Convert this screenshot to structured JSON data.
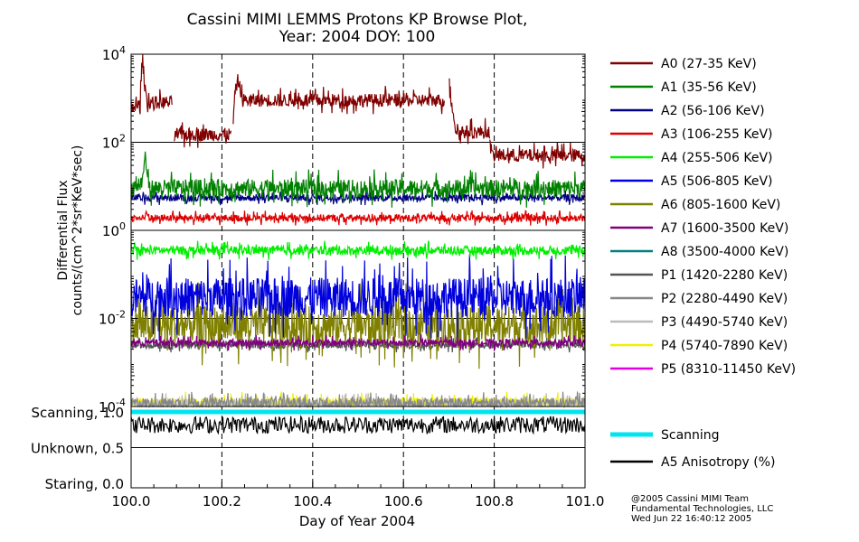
{
  "chart_data": [
    {
      "type": "line",
      "title": "Cassini MIMI LEMMS Protons KP Browse Plot,",
      "subtitle": "Year: 2004 DOY: 100",
      "ylabel_line1": "Differential Flux",
      "ylabel_line2": "counts/(cm^2*sr*KeV*sec)",
      "xlim": [
        100.0,
        101.0
      ],
      "ylim_log10": [
        -4,
        4
      ],
      "y_scale": "log",
      "y_ticks": [
        {
          "base": "10",
          "exp": "4",
          "value": 10000
        },
        {
          "base": "10",
          "exp": "2",
          "value": 100
        },
        {
          "base": "10",
          "exp": "0",
          "value": 1
        },
        {
          "base": "10",
          "exp": "-2",
          "value": 0.01
        },
        {
          "base": "10",
          "exp": "-4",
          "value": 0.0001
        }
      ],
      "legend_placement": "right",
      "series": [
        {
          "name": "A0 (27-35 KeV)",
          "color": "#800000",
          "segments": [
            {
              "x": [
                100.0,
                100.02,
                100.025,
                100.03,
                100.035,
                100.04,
                100.09
              ],
              "y": [
                600,
                700,
                6500,
                1800,
                900,
                800,
                800
              ]
            },
            {
              "x": [
                100.095,
                100.22
              ],
              "y": [
                150,
                150
              ]
            },
            {
              "x": [
                100.225,
                100.235,
                100.245,
                100.69
              ],
              "y": [
                300,
                2500,
                900,
                900
              ]
            },
            {
              "x": [
                100.7,
                100.705,
                100.715,
                100.79
              ],
              "y": [
                2500,
                800,
                170,
                170
              ]
            },
            {
              "x": [
                100.79,
                100.795,
                101.0
              ],
              "y": [
                100,
                50,
                50
              ]
            }
          ],
          "noise": 0.15
        },
        {
          "name": "A1 (35-56 KeV)",
          "color": "#008000",
          "segments": [
            {
              "x": [
                100.0,
                100.025,
                100.03,
                100.04,
                101.0
              ],
              "y": [
                9,
                12,
                40,
                9,
                9
              ]
            }
          ],
          "noise": 0.2
        },
        {
          "name": "A2 (56-106 KeV)",
          "color": "#000080",
          "segments": [
            {
              "x": [
                100.0,
                101.0
              ],
              "y": [
                5.5,
                5.5
              ]
            }
          ],
          "noise": 0.08
        },
        {
          "name": "A3 (106-255 KeV)",
          "color": "#dd0000",
          "segments": [
            {
              "x": [
                100.0,
                100.03,
                100.035,
                100.04,
                101.0
              ],
              "y": [
                1.9,
                1.9,
                2.8,
                1.9,
                1.9
              ]
            }
          ],
          "noise": 0.08
        },
        {
          "name": "A4 (255-506 KeV)",
          "color": "#00ee00",
          "segments": [
            {
              "x": [
                100.0,
                101.0
              ],
              "y": [
                0.35,
                0.35
              ]
            }
          ],
          "noise": 0.1
        },
        {
          "name": "A5 (506-805 KeV)",
          "color": "#0000dd",
          "segments": [
            {
              "x": [
                100.0,
                101.0
              ],
              "y": [
                0.03,
                0.03
              ]
            }
          ],
          "noise": 0.45
        },
        {
          "name": "A6 (805-1600 KeV)",
          "color": "#808000",
          "segments": [
            {
              "x": [
                100.0,
                101.0
              ],
              "y": [
                0.007,
                0.007
              ]
            }
          ],
          "noise": 0.45
        },
        {
          "name": "A7 (1600-3500 KeV)",
          "color": "#800080",
          "segments": [
            {
              "x": [
                100.0,
                101.0
              ],
              "y": [
                0.0028,
                0.0028
              ]
            }
          ],
          "noise": 0.08
        },
        {
          "name": "A8 (3500-4000 KeV)",
          "color": "#008080",
          "segments": [],
          "noise": 0
        },
        {
          "name": "P1 (1420-2280 KeV)",
          "color": "#555555",
          "segments": [
            {
              "x": [
                100.0,
                101.0
              ],
              "y": [
                0.0025,
                0.0025
              ]
            }
          ],
          "noise": 0.08
        },
        {
          "name": "P2 (2280-4490 KeV)",
          "color": "#888888",
          "segments": [
            {
              "x": [
                100.0,
                101.0
              ],
              "y": [
                0.00012,
                0.00012
              ]
            }
          ],
          "noise": 0.12
        },
        {
          "name": "P3 (4490-5740 KeV)",
          "color": "#bbbbbb",
          "segments": [
            {
              "x": [
                100.0,
                101.0
              ],
              "y": [
                0.00011,
                0.00011
              ]
            }
          ],
          "noise": 0.12
        },
        {
          "name": "P4 (5740-7890 KeV)",
          "color": "#f0f000",
          "segments": [
            {
              "x": [
                100.0,
                101.0
              ],
              "y": [
                0.00012,
                0.00012
              ]
            }
          ],
          "noise": 0.12
        },
        {
          "name": "P5 (8310-11450 KeV)",
          "color": "#e000e0",
          "segments": [],
          "noise": 0
        }
      ]
    },
    {
      "type": "line",
      "xlabel": "Day of Year 2004",
      "xlim": [
        100.0,
        101.0
      ],
      "x_ticks": [
        "100.0",
        "100.2",
        "100.4",
        "100.6",
        "100.8",
        "101.0"
      ],
      "y_ticks": [
        {
          "label": "Scanning, 1.0",
          "value": 1.0
        },
        {
          "label": "Unknown, 0.5",
          "value": 0.5
        },
        {
          "label": "Staring, 0.0",
          "value": 0.0
        }
      ],
      "ylim": [
        0.0,
        1.0
      ],
      "series": [
        {
          "name": "Scanning",
          "color": "#00e5ee",
          "x": [
            100.0,
            101.0
          ],
          "y": [
            1.0,
            1.0
          ]
        },
        {
          "name": "A5 Anisotropy (%)",
          "color": "#000000",
          "x": [
            100.0,
            101.0
          ],
          "y": [
            0.82,
            0.82
          ],
          "noise": 0.12
        }
      ]
    }
  ],
  "footer": {
    "line1": "@2005 Cassini MIMI Team",
    "line2": "Fundamental Technologies, LLC",
    "line3": "Wed Jun 22 16:40:12 2005"
  }
}
